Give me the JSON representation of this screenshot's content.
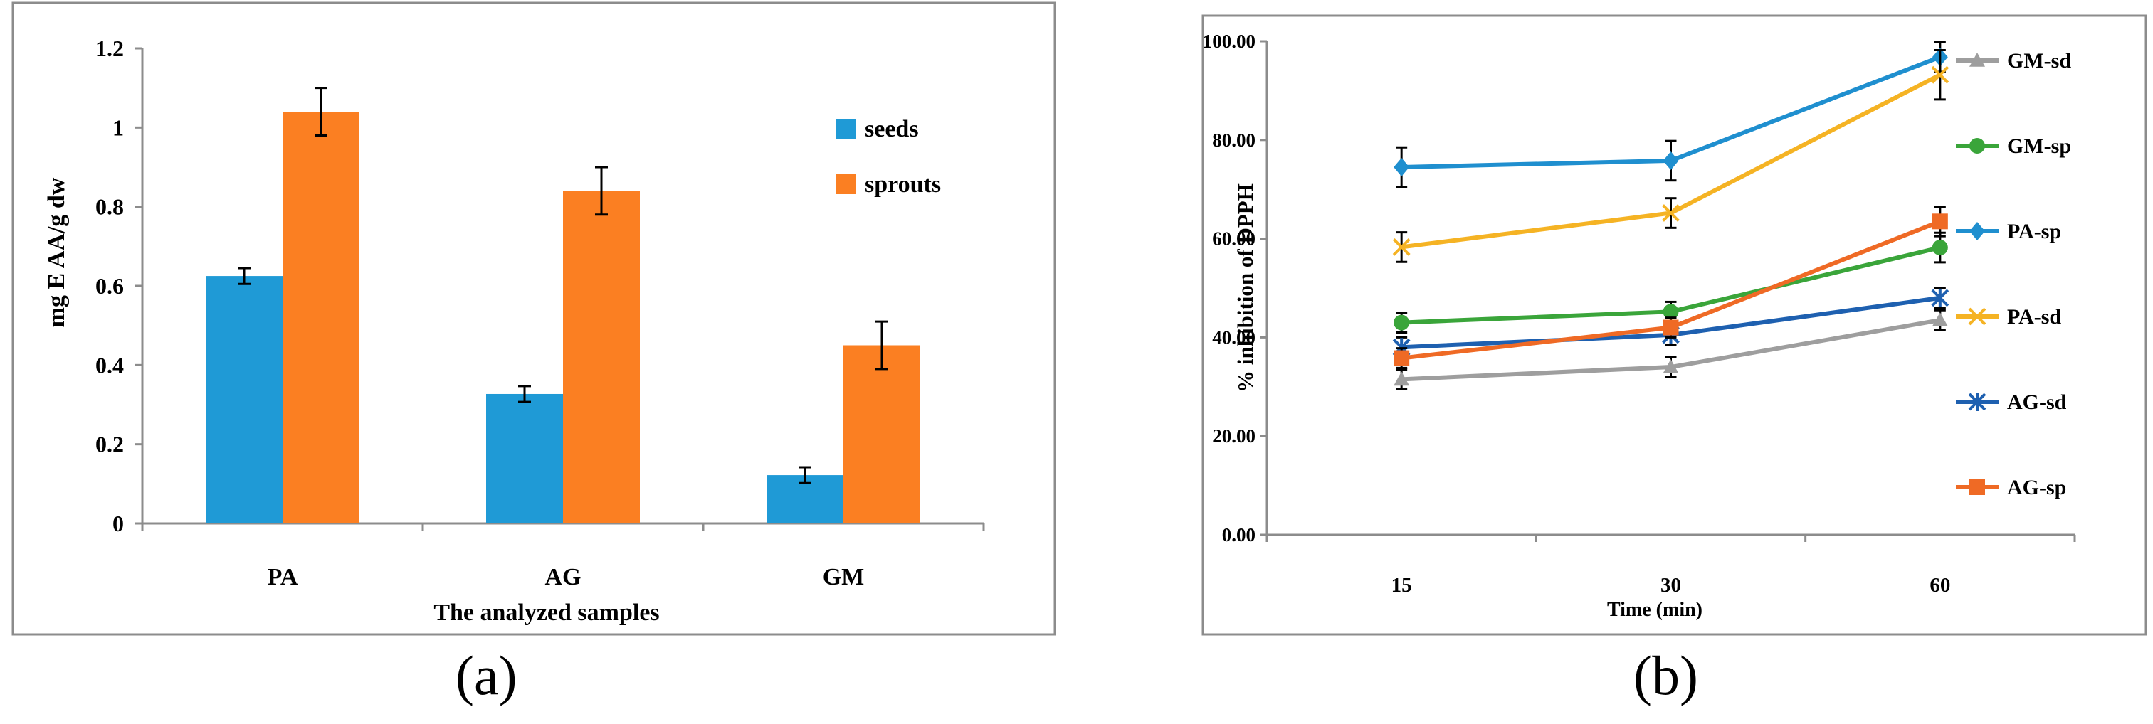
{
  "panel_labels": [
    "(a)",
    "(b)"
  ],
  "chart_data": [
    {
      "type": "bar",
      "title": "",
      "xlabel": "The analyzed samples",
      "ylabel": "mg E AA/g dw",
      "ylim": [
        0,
        1.2
      ],
      "yticks": [
        "0",
        "0.2",
        "0.4",
        "0.6",
        "0.8",
        "1",
        "1.2"
      ],
      "categories": [
        "PA",
        "AG",
        "GM"
      ],
      "legend_position": "top-right",
      "series": [
        {
          "name": "seeds",
          "color": "#1f9ad6",
          "values": [
            0.625,
            0.327,
            0.122
          ],
          "errors": [
            0.02,
            0.02,
            0.02
          ]
        },
        {
          "name": "sprouts",
          "color": "#fb7f22",
          "values": [
            1.04,
            0.84,
            0.45
          ],
          "errors": [
            0.06,
            0.06,
            0.06
          ]
        }
      ]
    },
    {
      "type": "line",
      "title": "",
      "xlabel": "Time (min)",
      "ylabel": "% inhibition  of  DPPH",
      "ylim": [
        0,
        100
      ],
      "yticks": [
        "0.00",
        "20.00",
        "40.00",
        "60.00",
        "80.00",
        "100.00"
      ],
      "x": [
        "15",
        "30",
        "60"
      ],
      "legend_position": "right",
      "series": [
        {
          "name": "GM-sd",
          "color": "#9e9e9e",
          "marker": "triangle",
          "values": [
            31.5,
            34.0,
            43.5
          ],
          "errors": [
            2,
            2,
            2
          ]
        },
        {
          "name": "GM-sp",
          "color": "#3aa53a",
          "marker": "circle",
          "values": [
            43.0,
            45.2,
            58.2
          ],
          "errors": [
            2,
            2,
            3
          ]
        },
        {
          "name": "PA-sp",
          "color": "#1f8fcf",
          "marker": "diamond",
          "values": [
            74.5,
            75.8,
            96.8
          ],
          "errors": [
            4,
            4,
            3
          ]
        },
        {
          "name": "PA-sd",
          "color": "#f5b324",
          "marker": "x",
          "values": [
            58.3,
            65.2,
            93.2
          ],
          "errors": [
            3,
            3,
            5
          ]
        },
        {
          "name": "AG-sd",
          "color": "#1e60b0",
          "marker": "star",
          "values": [
            38.0,
            40.5,
            48.0
          ],
          "errors": [
            2,
            2,
            2
          ]
        },
        {
          "name": "AG-sp",
          "color": "#ef6a25",
          "marker": "square",
          "values": [
            35.8,
            42.0,
            63.5
          ],
          "errors": [
            2,
            2,
            3
          ]
        }
      ]
    }
  ]
}
